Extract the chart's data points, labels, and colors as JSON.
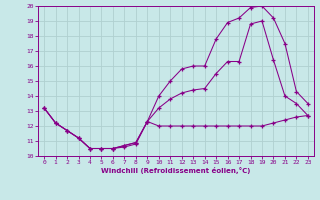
{
  "xlabel": "Windchill (Refroidissement éolien,°C)",
  "bg_color": "#c8e8e8",
  "grid_color": "#b0d0d0",
  "line_color": "#880088",
  "xlim": [
    -0.5,
    23.5
  ],
  "ylim": [
    10,
    20
  ],
  "yticks": [
    10,
    11,
    12,
    13,
    14,
    15,
    16,
    17,
    18,
    19,
    20
  ],
  "xticks": [
    0,
    1,
    2,
    3,
    4,
    5,
    6,
    7,
    8,
    9,
    10,
    11,
    12,
    13,
    14,
    15,
    16,
    17,
    18,
    19,
    20,
    21,
    22,
    23
  ],
  "curve1_x": [
    0,
    1,
    2,
    3,
    4,
    5,
    6,
    7,
    8,
    9,
    10,
    11,
    12,
    13,
    14,
    15,
    16,
    17,
    18,
    19,
    20,
    21,
    22,
    23
  ],
  "curve1_y": [
    13.2,
    12.2,
    11.7,
    11.2,
    10.5,
    10.5,
    10.5,
    10.6,
    10.8,
    12.3,
    12.0,
    12.0,
    12.0,
    12.0,
    12.0,
    12.0,
    12.0,
    12.0,
    12.0,
    12.0,
    12.2,
    12.4,
    12.6,
    12.7
  ],
  "curve2_x": [
    0,
    1,
    2,
    3,
    4,
    5,
    6,
    7,
    8,
    9,
    10,
    11,
    12,
    13,
    14,
    15,
    16,
    17,
    18,
    19,
    20,
    21,
    22,
    23
  ],
  "curve2_y": [
    13.2,
    12.2,
    11.7,
    11.2,
    10.5,
    10.5,
    10.5,
    10.7,
    10.9,
    12.3,
    13.2,
    13.8,
    14.2,
    14.4,
    14.5,
    15.5,
    16.3,
    16.3,
    18.8,
    19.0,
    16.4,
    14.0,
    13.5,
    12.7
  ],
  "curve3_x": [
    0,
    1,
    2,
    3,
    4,
    5,
    6,
    7,
    8,
    9,
    10,
    11,
    12,
    13,
    14,
    15,
    16,
    17,
    18,
    19,
    20,
    21,
    22,
    23
  ],
  "curve3_y": [
    13.2,
    12.2,
    11.7,
    11.2,
    10.5,
    10.5,
    10.5,
    10.7,
    10.9,
    12.3,
    14.0,
    15.0,
    15.8,
    16.0,
    16.0,
    17.8,
    18.9,
    19.2,
    19.9,
    20.0,
    19.2,
    17.5,
    14.3,
    13.5
  ]
}
